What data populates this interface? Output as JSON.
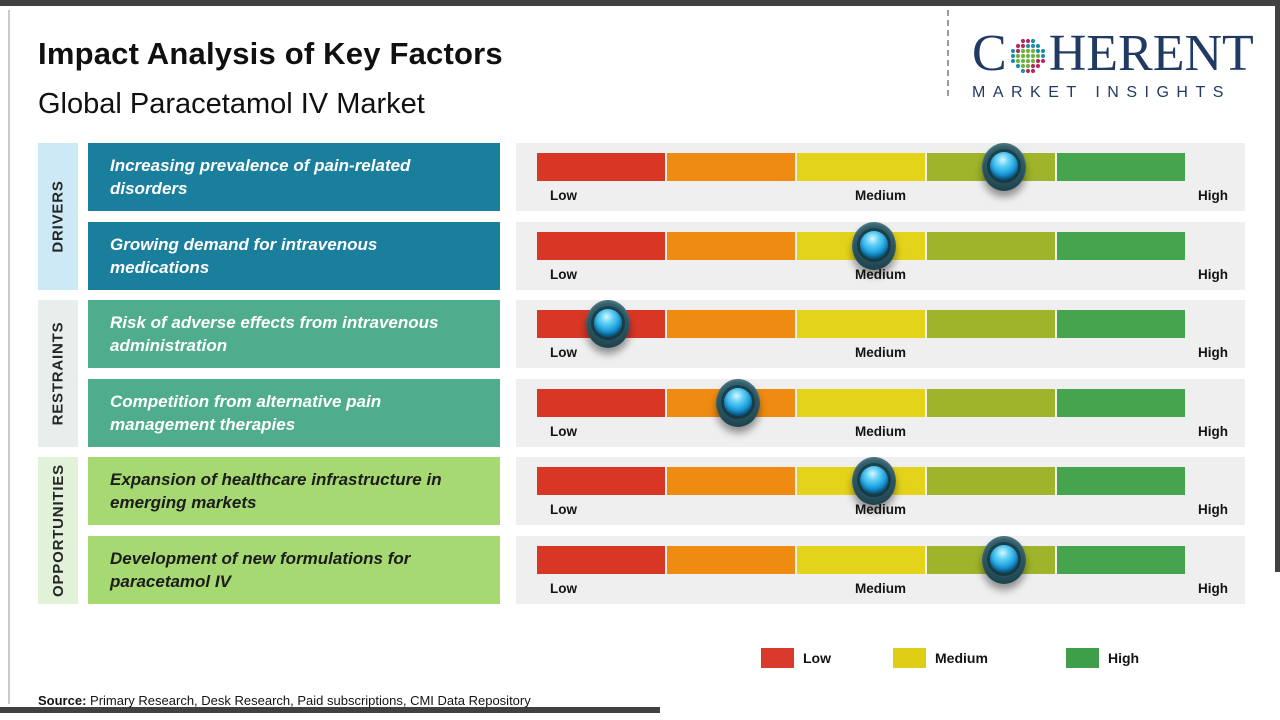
{
  "header": {
    "title": "Impact Analysis of Key Factors",
    "subtitle": "Global Paracetamol IV Market"
  },
  "logo": {
    "prefix": "C",
    "suffix": "HERENT",
    "tagline": "MARKET INSIGHTS",
    "navy": "#203a64",
    "dot_colors": {
      "teal": "#1f8fa8",
      "green": "#6cb33f",
      "crimson": "#b8295e"
    }
  },
  "groups": [
    {
      "label": "DRIVERS",
      "tab_bg": "#cde9f5",
      "box_bg": "#1a7e9d",
      "box_text": "#ffffff"
    },
    {
      "label": "RESTRAINTS",
      "tab_bg": "#e8eeeb",
      "box_bg": "#4fad8e",
      "box_text": "#ffffff"
    },
    {
      "label": "OPPORTUNITIES",
      "tab_bg": "#e2f2d8",
      "box_bg": "#a6d972",
      "box_text": "#1c1c1c"
    }
  ],
  "rows": [
    {
      "group": "DRIVERS",
      "factor": "Increasing prevalence of pain-related disorders",
      "impact_percent": 72
    },
    {
      "group": "DRIVERS",
      "factor": "Growing demand for intravenous medications",
      "impact_percent": 52
    },
    {
      "group": "RESTRAINTS",
      "factor": "Risk of adverse effects from intravenous administration",
      "impact_percent": 11
    },
    {
      "group": "RESTRAINTS",
      "factor": "Competition from alternative pain management therapies",
      "impact_percent": 31
    },
    {
      "group": "OPPORTUNITIES",
      "factor": "Expansion of healthcare infrastructure in emerging markets",
      "impact_percent": 52
    },
    {
      "group": "OPPORTUNITIES",
      "factor": "Development of new formulations for paracetamol IV",
      "impact_percent": 72
    }
  ],
  "scale": {
    "low": "Low",
    "medium": "Medium",
    "high": "High",
    "segment_colors": [
      "#d93726",
      "#ef8b11",
      "#e4d31b",
      "#9fb42b",
      "#46a44f"
    ],
    "panel_bg": "#efefef"
  },
  "legend": [
    {
      "label": "Low",
      "color": "#d93a2b"
    },
    {
      "label": "Medium",
      "color": "#e0ce16"
    },
    {
      "label": "High",
      "color": "#3f9e4a"
    }
  ],
  "source": {
    "label": "Source:",
    "text": "Primary Research, Desk Research, Paid subscriptions, CMI Data Repository"
  },
  "chart_data": {
    "type": "scatter",
    "subtype": "dot-on-rating-scale",
    "title": "Impact Analysis of Key Factors",
    "subtitle": "Global Paracetamol IV Market",
    "categories": [
      "Increasing prevalence of pain-related disorders",
      "Growing demand for intravenous medications",
      "Risk of adverse effects from intravenous administration",
      "Competition from alternative pain management therapies",
      "Expansion of healthcare infrastructure in emerging markets",
      "Development of new formulations for paracetamol IV"
    ],
    "category_groups": [
      "DRIVERS",
      "DRIVERS",
      "RESTRAINTS",
      "RESTRAINTS",
      "OPPORTUNITIES",
      "OPPORTUNITIES"
    ],
    "series": [
      {
        "name": "Impact position on Low-High scale (% of scale length)",
        "values": [
          72,
          52,
          11,
          31,
          52,
          72
        ]
      }
    ],
    "x_ticks": [
      "Low",
      "Medium",
      "High"
    ],
    "xlim_percent": [
      0,
      100
    ],
    "scale_segments": [
      "red",
      "orange",
      "yellow",
      "yellow-green",
      "green"
    ],
    "legend": [
      "Low",
      "Medium",
      "High"
    ],
    "legend_position": "bottom",
    "grid": false
  }
}
